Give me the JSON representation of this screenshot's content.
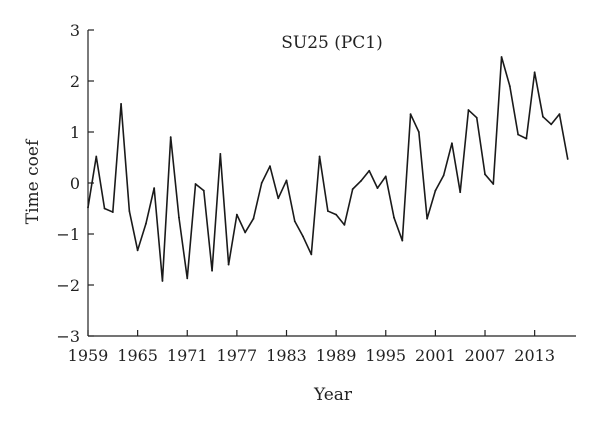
{
  "chart_data": {
    "type": "line",
    "title": "SU25 (PC1)",
    "xlabel": "Year",
    "ylabel": "Time coef",
    "xlim": [
      1959,
      2018
    ],
    "ylim": [
      -3,
      3
    ],
    "xticks": [
      1959,
      1965,
      1971,
      1977,
      1983,
      1989,
      1995,
      2001,
      2007,
      2013
    ],
    "yticks": [
      -3,
      -2,
      -1,
      0,
      1,
      2,
      3
    ],
    "grid": false,
    "legend": "none",
    "line_color": "#1a1a1a",
    "series": [
      {
        "x": [
          1959,
          1960,
          1961,
          1962,
          1963,
          1964,
          1965,
          1966,
          1967,
          1968,
          1969,
          1970,
          1971,
          1972,
          1973,
          1974,
          1975,
          1976,
          1977,
          1978,
          1979,
          1980,
          1981,
          1982,
          1983,
          1984,
          1985,
          1986,
          1987,
          1988,
          1989,
          1990,
          1991,
          1992,
          1993,
          1994,
          1995,
          1996,
          1997,
          1998,
          1999,
          2000,
          2001,
          2002,
          2003,
          2004,
          2005,
          2006,
          2007,
          2008,
          2009,
          2010,
          2011,
          2012,
          2013,
          2014,
          2015,
          2016,
          2017
        ],
        "values": [
          -0.48,
          0.52,
          -0.5,
          -0.57,
          1.55,
          -0.55,
          -1.32,
          -0.8,
          -0.1,
          -1.92,
          0.9,
          -0.68,
          -1.87,
          -0.02,
          -0.15,
          -1.72,
          0.57,
          -1.6,
          -0.62,
          -0.97,
          -0.7,
          0.0,
          0.33,
          -0.3,
          0.05,
          -0.75,
          -1.05,
          -1.4,
          0.52,
          -0.55,
          -0.62,
          -0.82,
          -0.12,
          0.04,
          0.24,
          -0.1,
          0.13,
          -0.68,
          -1.13,
          1.35,
          1.0,
          -0.7,
          -0.15,
          0.15,
          0.78,
          -0.18,
          1.43,
          1.28,
          0.17,
          -0.02,
          2.47,
          1.9,
          0.95,
          0.87,
          2.17,
          1.3,
          1.15,
          1.35,
          0.47
        ]
      }
    ]
  }
}
